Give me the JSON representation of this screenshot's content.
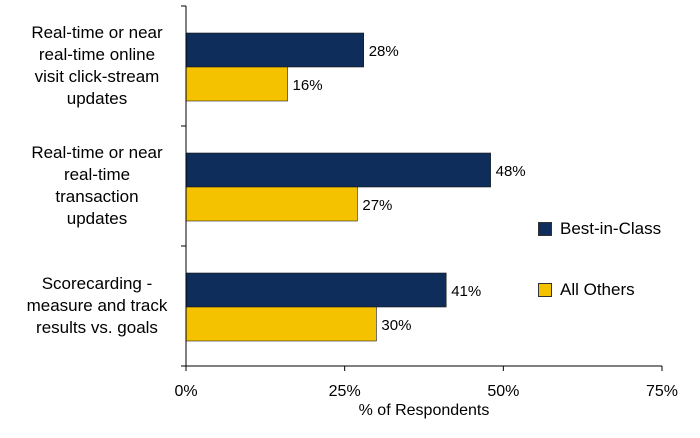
{
  "chart_data": {
    "type": "bar",
    "orientation": "horizontal",
    "categories": [
      "Real-time or near real-time online visit click-stream updates",
      "Real-time or near real-time transaction updates",
      "Scorecarding - measure and track results vs. goals"
    ],
    "category_label_lines": [
      [
        "Real-time or near",
        "real-time online",
        "visit click-stream",
        "updates"
      ],
      [
        "Real-time or near",
        "real-time",
        "transaction",
        "updates"
      ],
      [
        "Scorecarding -",
        "measure and track",
        "results vs. goals"
      ]
    ],
    "series": [
      {
        "name": "Best-in-Class",
        "color": "#0f2d5a",
        "values": [
          28,
          48,
          41
        ],
        "labels": [
          "28%",
          "48%",
          "41%"
        ]
      },
      {
        "name": "All Others",
        "color": "#f5c200",
        "values": [
          16,
          27,
          30
        ],
        "labels": [
          "16%",
          "27%",
          "30%"
        ]
      }
    ],
    "xlabel": "% of Respondents",
    "xlim": [
      0,
      75
    ],
    "xticks": [
      0,
      25,
      50,
      75
    ],
    "xtick_labels": [
      "0%",
      "25%",
      "50%",
      "75%"
    ],
    "legend_position": "right",
    "grid": false
  }
}
